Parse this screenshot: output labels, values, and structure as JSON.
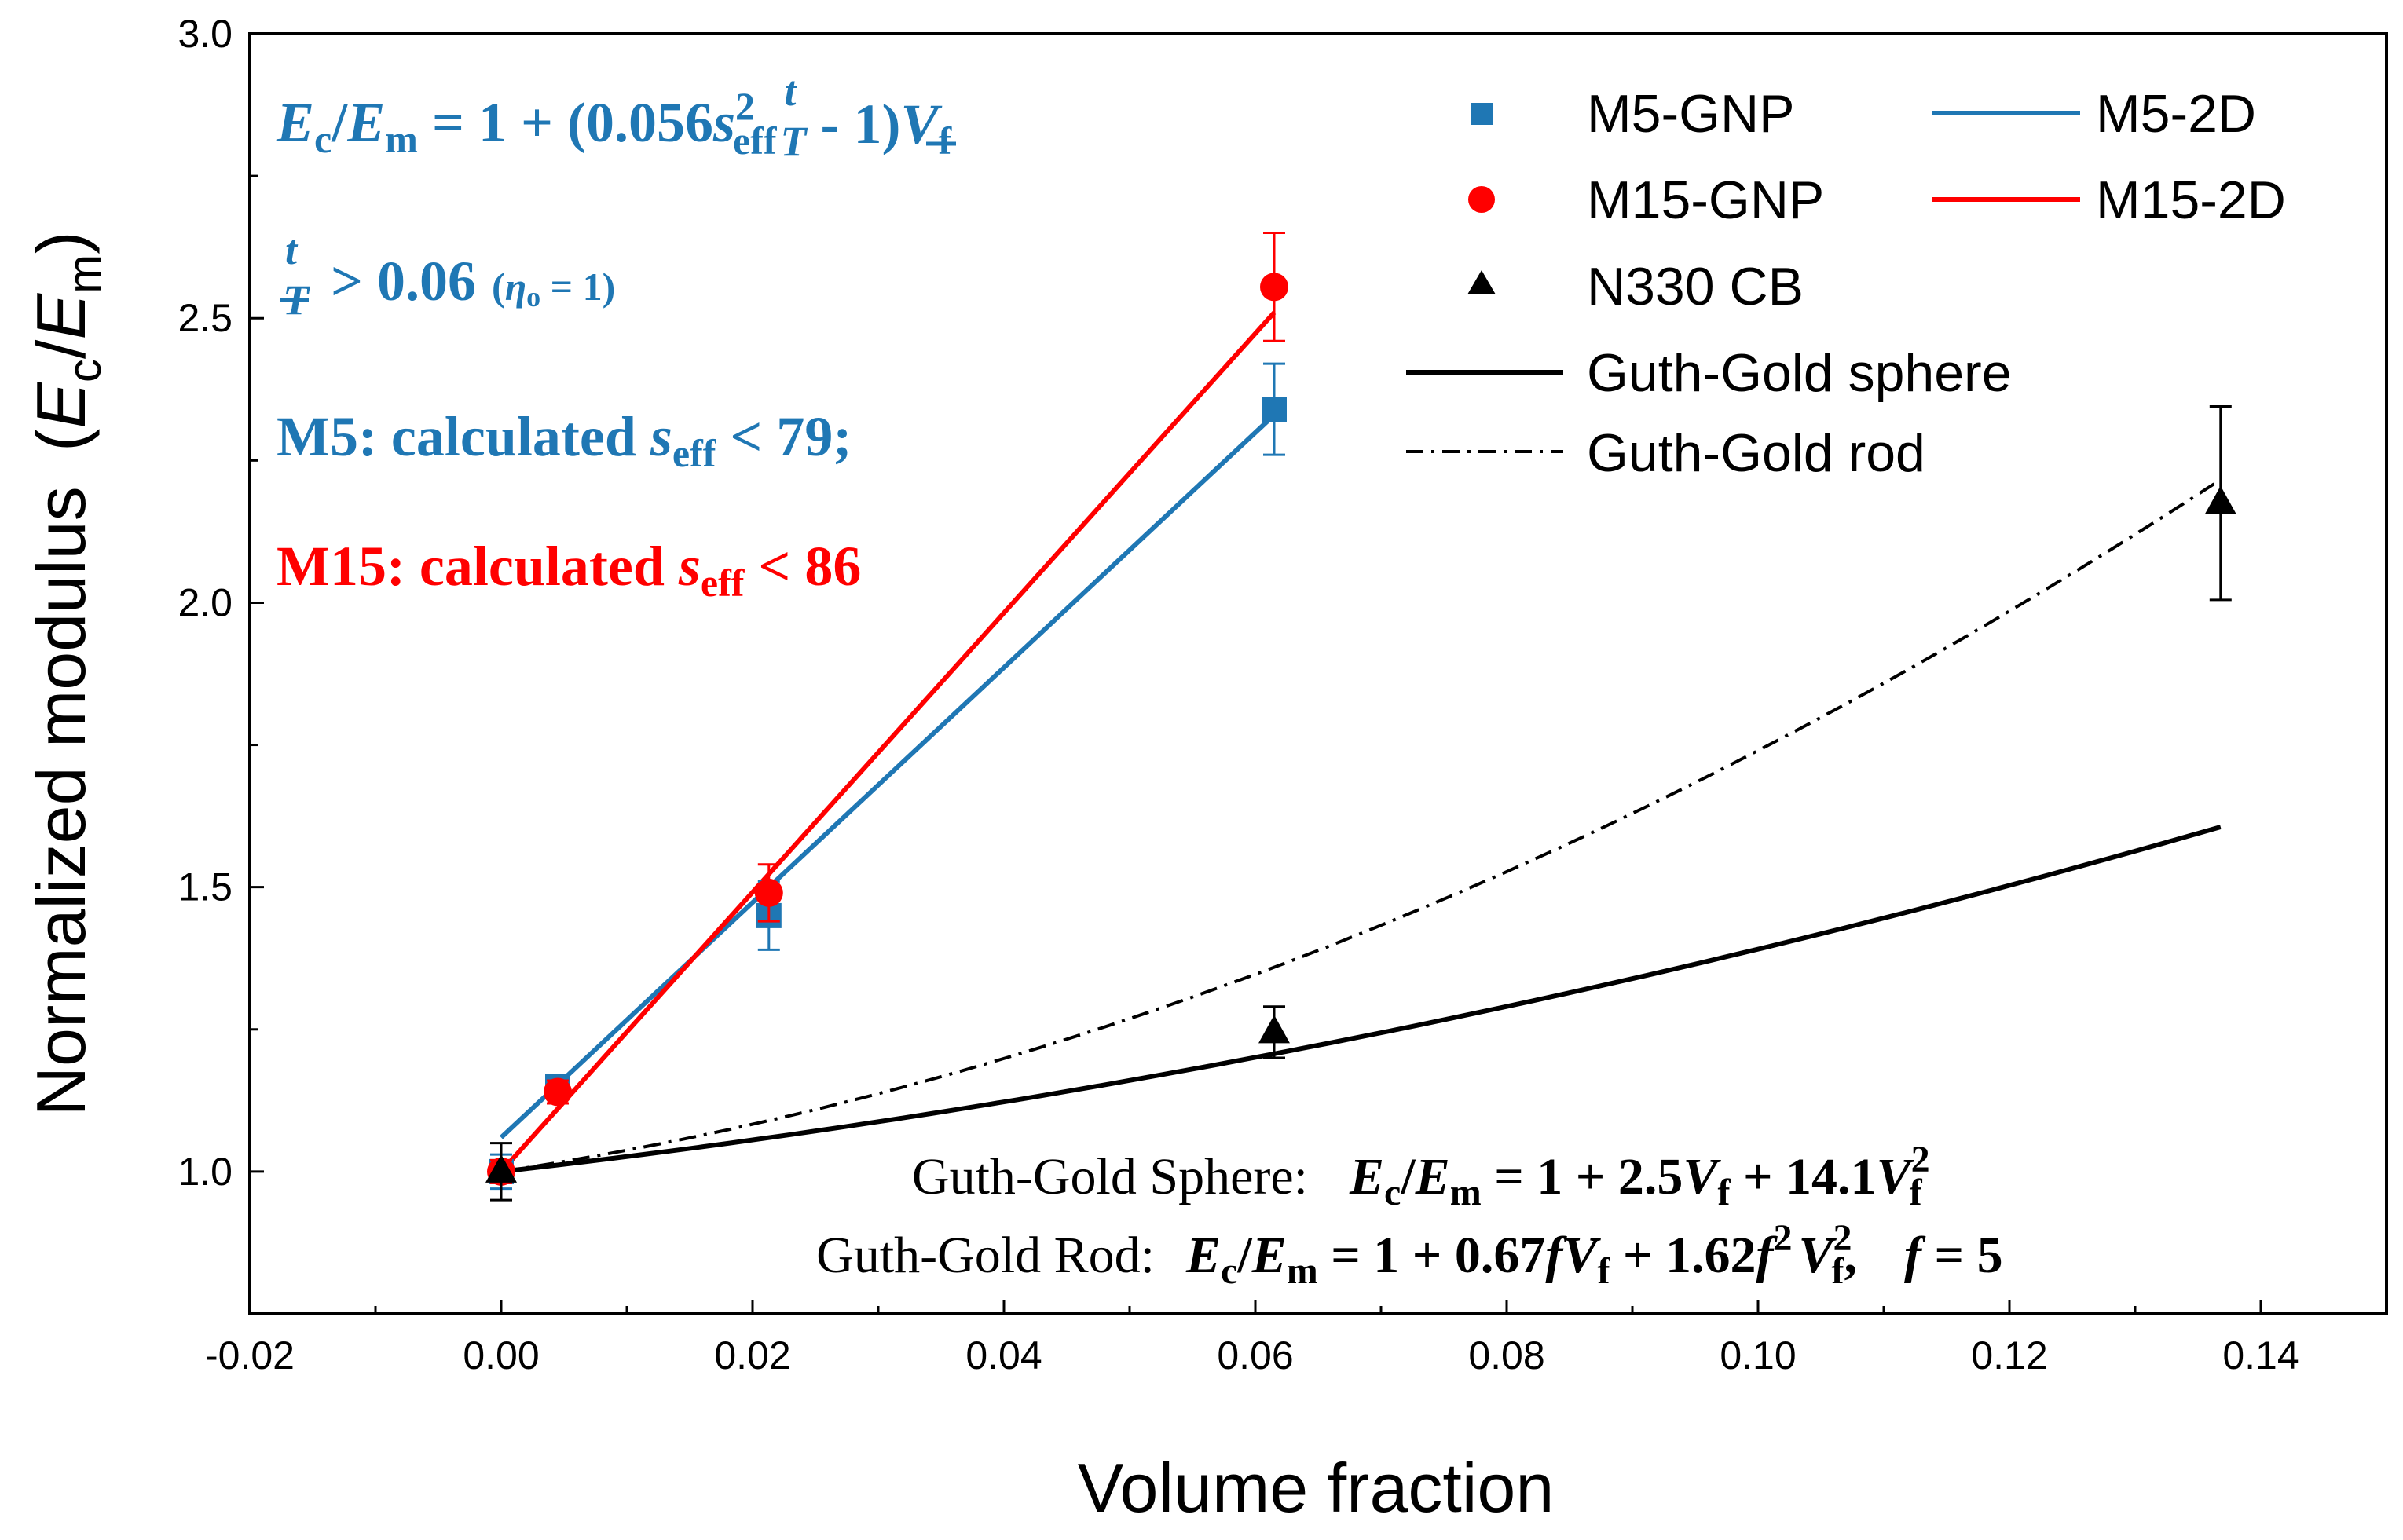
{
  "chart_data": {
    "type": "scatter",
    "xlabel": "Volume fraction",
    "ylabel": "Normalized modulus",
    "ylabel_parts": {
      "open": "(",
      "ec_base": "E",
      "ec_sub": "c",
      "slash": "/",
      "em_base": "E",
      "em_sub": "m",
      "close": ")"
    },
    "xlim": [
      -0.02,
      0.15
    ],
    "ylim": [
      0.75,
      3.0
    ],
    "xticks": [
      -0.02,
      0.0,
      0.02,
      0.04,
      0.06,
      0.08,
      0.1,
      0.12,
      0.14
    ],
    "xtick_labels": [
      "-0.02",
      "0.00",
      "0.02",
      "0.04",
      "0.06",
      "0.08",
      "0.10",
      "0.12",
      "0.14"
    ],
    "yticks": [
      1.0,
      1.5,
      2.0,
      2.5,
      3.0
    ],
    "ytick_labels": [
      "1.0",
      "1.5",
      "2.0",
      "2.5",
      "3.0"
    ],
    "series": [
      {
        "name": "M5-GNP",
        "kind": "points",
        "marker": "square",
        "color": "#1f77b4",
        "points": [
          {
            "x": 0.0,
            "y": 1.0,
            "err": 0.03
          },
          {
            "x": 0.0045,
            "y": 1.15,
            "err": 0.02
          },
          {
            "x": 0.0213,
            "y": 1.45,
            "err": 0.06
          },
          {
            "x": 0.0615,
            "y": 2.34,
            "err": 0.08
          }
        ]
      },
      {
        "name": "M15-GNP",
        "kind": "points",
        "marker": "circle",
        "color": "#ff0000",
        "points": [
          {
            "x": 0.0,
            "y": 1.0,
            "err": 0.02
          },
          {
            "x": 0.0045,
            "y": 1.14,
            "err": 0.02
          },
          {
            "x": 0.0213,
            "y": 1.49,
            "err": 0.05
          },
          {
            "x": 0.0615,
            "y": 2.555,
            "err": 0.095
          }
        ]
      },
      {
        "name": "N330 CB",
        "kind": "points",
        "marker": "triangle",
        "color": "#000000",
        "points": [
          {
            "x": 0.0,
            "y": 1.0,
            "err": 0.05
          },
          {
            "x": 0.0615,
            "y": 1.245,
            "err": 0.045
          },
          {
            "x": 0.1368,
            "y": 2.175,
            "err": 0.17
          }
        ]
      },
      {
        "name": "M5-2D",
        "kind": "line",
        "color": "#1f77b4",
        "x": [
          0.0,
          0.0615
        ],
        "y": [
          1.06,
          2.33
        ]
      },
      {
        "name": "M15-2D",
        "kind": "line",
        "color": "#ff0000",
        "x": [
          0.0,
          0.0615
        ],
        "y": [
          1.0,
          2.51
        ]
      },
      {
        "name": "Guth-Gold sphere",
        "kind": "curve",
        "color": "#000000",
        "dash": "solid",
        "model": "sphere",
        "x_range": [
          0.0,
          0.1368
        ]
      },
      {
        "name": "Guth-Gold rod",
        "kind": "curve",
        "color": "#000000",
        "dash": "dashdot",
        "model": "rod",
        "f": 5,
        "x_range": [
          0.0,
          0.1368
        ]
      }
    ],
    "legend_position": "top-right"
  },
  "annotations": {
    "model2d": {
      "ratio": "E",
      "c": "c",
      "slash": "/",
      "m": "m",
      "eq": " = 1 + (0.056",
      "s": "s",
      "sq": "2",
      "eff": "eff",
      "frac_t": "t",
      "frac_T": "T",
      "tail": " - 1)",
      "V": "V",
      "f": "f"
    },
    "ratio_line": {
      "t": "t",
      "T": "T",
      "gt": "> 0.06",
      "eta_open": "(",
      "eta": "η",
      "eta_sub": "o",
      "eta_val": " = 1)"
    },
    "m5_line": {
      "prefix": "M5: calculated ",
      "s": "s",
      "eff": "eff",
      "suffix": " < 79;"
    },
    "m15_line": {
      "prefix": "M15: calculated ",
      "s": "s",
      "eff": "eff",
      "suffix": " < 86"
    },
    "sphere_eq": {
      "label": "Guth-Gold Sphere:",
      "E1": "E",
      "c": "c",
      "slash": "/",
      "E2": "E",
      "m": "m",
      "mid": " = 1 + 2.5",
      "V1": "V",
      "f1": "f",
      "plus": "  +  14.1",
      "V2": "V",
      "sup": "2",
      "f2": "f"
    },
    "rod_eq": {
      "label": "Guth-Gold Rod:",
      "E1": "E",
      "c": "c",
      "slash": "/",
      "E2": "E",
      "m": "m",
      "mid": " = 1 + 0.67",
      "fa": "f",
      "V1": "V",
      "f1": "f",
      "plus": "  +  1.62",
      "fb": "f",
      "sup1": "2",
      "V2": "V",
      "sup2": "2",
      "f2": "f",
      "comma": ",",
      "fc": "f",
      "fval": " = 5"
    }
  }
}
